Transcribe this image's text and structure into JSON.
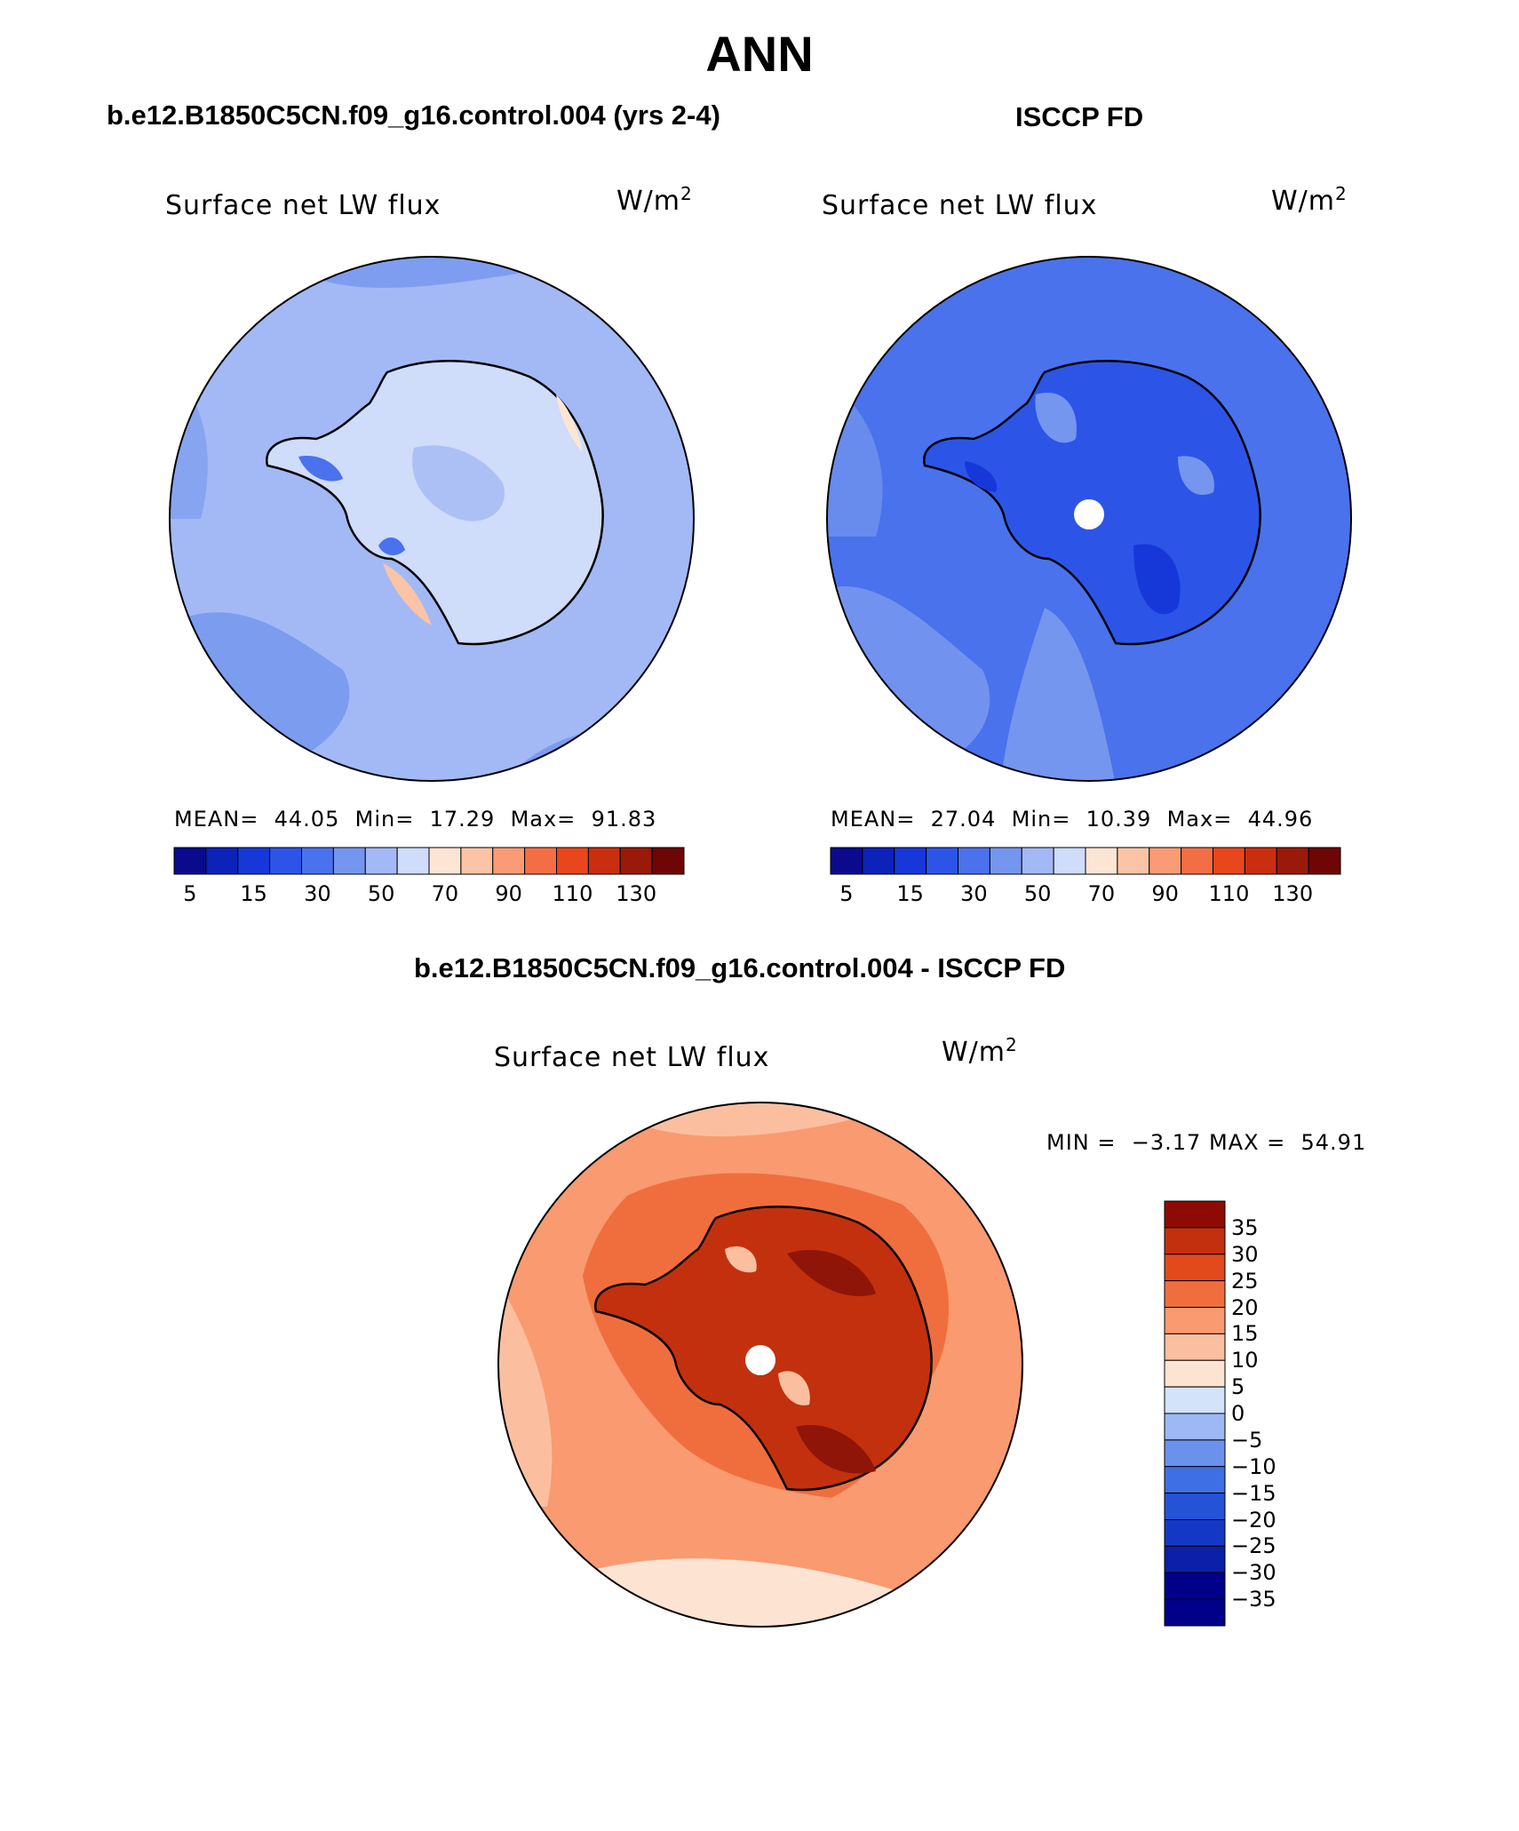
{
  "title": "ANN",
  "colors": {
    "scale": [
      "#0a0a8c",
      "#0c22b8",
      "#1738d8",
      "#2c55e8",
      "#4a72ec",
      "#7596ef",
      "#a3b9f5",
      "#cfdcfa",
      "#fde5d4",
      "#fbc4a6",
      "#f99c75",
      "#f46e45",
      "#e8471e",
      "#c92e0f",
      "#9a1a0a",
      "#6e0606"
    ],
    "diff_scale": [
      "#00008a",
      "#0b1fa8",
      "#1538c4",
      "#2553d8",
      "#3f6fe4",
      "#6a92ec",
      "#9db8f4",
      "#d2e3fa",
      "#fde3d2",
      "#fbbfa0",
      "#f99a70",
      "#f06e3e",
      "#e24a1c",
      "#c3300e",
      "#8e1508"
    ],
    "land_outline": "#000000"
  },
  "chart_data": [
    {
      "type": "heatmap",
      "panel": "model",
      "subtitle": "b.e12.B1850C5CN.f09_g16.control.004 (yrs 2-4)",
      "label": "Surface net LW flux",
      "units": "W/m",
      "units_exp": "2",
      "mean_label": "MEAN=",
      "mean": "44.05",
      "min_label": "Min=",
      "min": "17.29",
      "max_label": "Max=",
      "max": "91.83",
      "colorbar_ticks": [
        "5",
        "15",
        "30",
        "50",
        "70",
        "90",
        "110",
        "130"
      ],
      "levels": [
        5,
        10,
        15,
        20,
        30,
        40,
        50,
        60,
        70,
        80,
        90,
        100,
        110,
        120,
        130
      ],
      "dominant_color": "#a3b9f5"
    },
    {
      "type": "heatmap",
      "panel": "obs",
      "subtitle": "ISCCP FD",
      "label": "Surface net LW flux",
      "units": "W/m",
      "units_exp": "2",
      "mean_label": "MEAN=",
      "mean": "27.04",
      "min_label": "Min=",
      "min": "10.39",
      "max_label": "Max=",
      "max": "44.96",
      "colorbar_ticks": [
        "5",
        "15",
        "30",
        "50",
        "70",
        "90",
        "110",
        "130"
      ],
      "levels": [
        5,
        10,
        15,
        20,
        30,
        40,
        50,
        60,
        70,
        80,
        90,
        100,
        110,
        120,
        130
      ],
      "dominant_color": "#4a72ec"
    },
    {
      "type": "heatmap",
      "panel": "difference",
      "subtitle": "b.e12.B1850C5CN.f09_g16.control.004 - ISCCP FD",
      "label": "Surface net LW flux",
      "units": "W/m",
      "units_exp": "2",
      "min_label": "MIN =",
      "min": "−3.17",
      "max_label": "MAX =",
      "max": "54.91",
      "colorbar_ticks": [
        "35",
        "30",
        "25",
        "20",
        "15",
        "10",
        "5",
        "0",
        "−5",
        "−10",
        "−15",
        "−20",
        "−25",
        "−30",
        "−35"
      ],
      "levels": [
        35,
        30,
        25,
        20,
        15,
        10,
        5,
        0,
        -5,
        -10,
        -15,
        -20,
        -25,
        -30,
        -35
      ],
      "dominant_color": "#f99a70"
    }
  ]
}
